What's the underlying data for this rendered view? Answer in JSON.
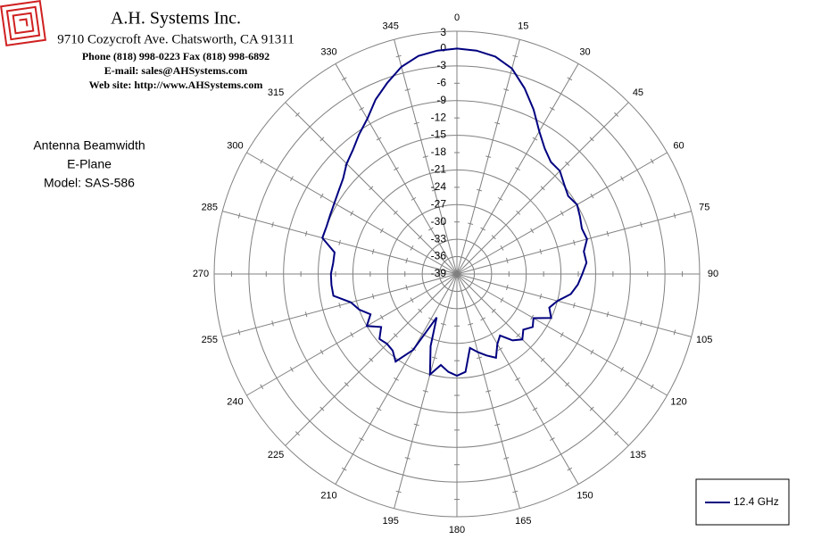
{
  "header": {
    "company": "A.H. Systems Inc.",
    "address": "9710 Cozycroft Ave. Chatsworth, CA 91311",
    "phone": "Phone (818) 998-0223 Fax (818) 998-6892",
    "email": "E-mail: sales@AHSystems.com",
    "web": "Web site: http://www.AHSystems.com"
  },
  "chart_data": {
    "type": "polar",
    "annotations": [
      "Antenna Beamwidth",
      "E-Plane",
      "Model: SAS-586"
    ],
    "x": [
      0,
      5,
      10,
      15,
      20,
      25,
      30,
      35,
      40,
      45,
      50,
      55,
      60,
      65,
      70,
      75,
      80,
      85,
      90,
      95,
      100,
      105,
      110,
      115,
      120,
      125,
      130,
      135,
      140,
      145,
      150,
      155,
      160,
      165,
      170,
      175,
      180,
      185,
      190,
      195,
      200,
      205,
      210,
      215,
      220,
      225,
      230,
      235,
      240,
      245,
      250,
      255,
      260,
      265,
      270,
      275,
      280,
      285,
      290,
      295,
      300,
      305,
      310,
      315,
      320,
      325,
      330,
      335,
      340,
      345,
      350,
      355
    ],
    "series": [
      {
        "name": "12.4 GHz",
        "color": "#000080",
        "values": [
          0,
          -0.2,
          -0.8,
          -2.2,
          -4.8,
          -7.6,
          -10.5,
          -12.5,
          -13.7,
          -13.8,
          -14.8,
          -15.5,
          -15,
          -15.5,
          -16,
          -15.7,
          -16.7,
          -16.5,
          -17.3,
          -18,
          -19,
          -21,
          -22,
          -21,
          -23.7,
          -23,
          -24,
          -23,
          -24,
          -26,
          -25,
          -23,
          -24,
          -25,
          -26,
          -22,
          -21.4,
          -22,
          -23,
          -21,
          -25.7,
          -30.7,
          -23.8,
          -20.5,
          -21.7,
          -21.9,
          -21.5,
          -23,
          -21,
          -22.5,
          -21,
          -20,
          -17.3,
          -17.2,
          -17.2,
          -17.5,
          -17.5,
          -14.9,
          -15,
          -14.8,
          -14.5,
          -14,
          -13.3,
          -12,
          -11,
          -9.5,
          -8,
          -5.7,
          -3.8,
          -1.9,
          -0.7,
          -0.2
        ]
      }
    ],
    "xlim": [
      0,
      360
    ],
    "xticks": [
      0,
      15,
      30,
      45,
      60,
      75,
      90,
      105,
      120,
      135,
      150,
      165,
      180,
      195,
      210,
      225,
      240,
      255,
      270,
      285,
      300,
      315,
      330,
      345
    ],
    "ylim": [
      -39,
      3
    ],
    "yticks": [
      3,
      0,
      -3,
      -6,
      -9,
      -12,
      -15,
      -18,
      -21,
      -24,
      -27,
      -30,
      -33,
      -36,
      -39
    ],
    "legend": "bottom-right"
  }
}
